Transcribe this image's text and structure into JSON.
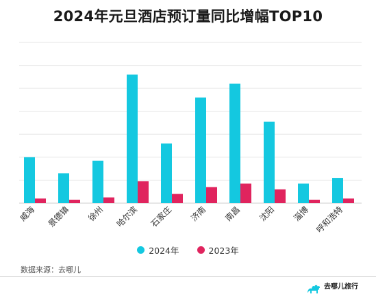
{
  "colors": {
    "series_2024": "#14c8e0",
    "series_2023": "#e0245e",
    "grid": "#e6e6e6"
  },
  "source_text": "数据来源：去哪儿",
  "logo": {
    "name": "去哪儿旅行",
    "icon": "camel-logo-icon"
  },
  "chart_data": {
    "type": "bar",
    "title": "2024年元旦酒店预订量同比增幅TOP10",
    "categories": [
      "威海",
      "景德镇",
      "徐州",
      "哈尔滨",
      "石家庄",
      "济南",
      "南昌",
      "沈阳",
      "淄博",
      "呼和浩特"
    ],
    "series": [
      {
        "name": "2024年",
        "values": [
          20,
          13,
          18.5,
          56,
          26,
          46,
          52,
          35.5,
          8.5,
          11
        ]
      },
      {
        "name": "2023年",
        "values": [
          2,
          1.5,
          2.5,
          9.5,
          4,
          7,
          8.5,
          6,
          1.5,
          2
        ]
      }
    ],
    "ylim": [
      0,
      70
    ],
    "grid": true,
    "y_tick_labels_visible": false,
    "legend_position": "bottom"
  }
}
